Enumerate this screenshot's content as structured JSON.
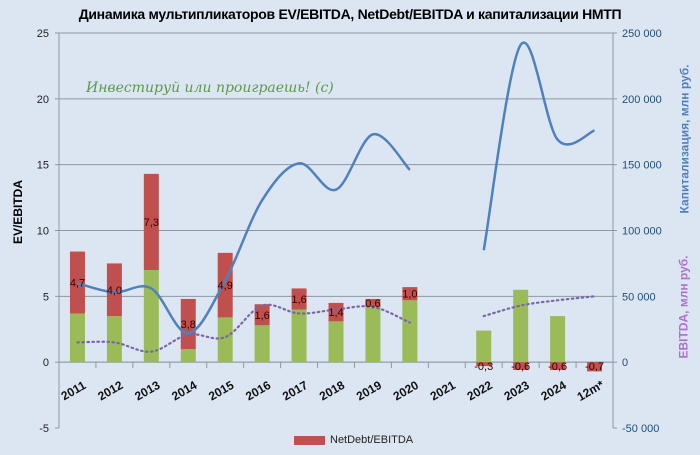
{
  "chart_data": {
    "type": "bar",
    "title": "Динамика мультипликаторов EV/EBITDA, NetDebt/EBITDA и капитализации НМТП",
    "watermark": "Инвестируй или проиграешь! (с)",
    "categories": [
      "2011",
      "2012",
      "2013",
      "2014",
      "2015",
      "2016",
      "2017",
      "2018",
      "2019",
      "2020",
      "2021",
      "2022",
      "2023",
      "2024",
      "12m*"
    ],
    "ylabel": "EV/EBITDA",
    "ylim": [
      -5,
      25
    ],
    "yticks": [
      "-5",
      "0",
      "5",
      "10",
      "15",
      "20",
      "25"
    ],
    "y2label_cap": "Капитализация, млн руб.",
    "y2label_ebitda": "EBITDA, млн руб.",
    "y2lim": [
      -50000,
      250000
    ],
    "y2ticks": [
      "-50 000",
      "0",
      "50 000",
      "100 000",
      "150 000",
      "200 000",
      "250 000"
    ],
    "grid": true,
    "legend_position": "bottom",
    "series": [
      {
        "kind": "bar-stacked",
        "color": "#9bbb59",
        "values": [
          3.7,
          3.5,
          7.0,
          1.0,
          3.4,
          2.8,
          4.0,
          3.1,
          4.2,
          4.7,
          null,
          2.4,
          5.5,
          3.5,
          0
        ]
      },
      {
        "name": "NetDebt/EBITDA",
        "kind": "bar-stacked",
        "color": "#c0504d",
        "values": [
          4.7,
          4.0,
          7.3,
          3.8,
          4.9,
          1.6,
          1.6,
          1.4,
          0.6,
          1.0,
          null,
          -0.3,
          -0.6,
          -0.6,
          -0.7
        ],
        "labels": [
          "4,7",
          "4,0",
          "7,3",
          "3,8",
          "4,9",
          "1,6",
          "1,6",
          "1,4",
          "0,6",
          "1,0",
          "",
          "-0,3",
          "-0,6",
          "-0,6",
          "-0,7"
        ]
      },
      {
        "kind": "line",
        "axis": "right",
        "color": "#4f81bd",
        "values": [
          60000,
          53000,
          56000,
          22000,
          62000,
          123000,
          151000,
          131000,
          173000,
          146000,
          null,
          85000,
          241000,
          169000,
          176000
        ]
      },
      {
        "kind": "line-dotted",
        "axis": "right",
        "color": "#7a66a8",
        "values": [
          15000,
          15000,
          8000,
          21000,
          19000,
          43000,
          37000,
          40000,
          42000,
          30000,
          null,
          35000,
          43000,
          47000,
          50000
        ]
      }
    ],
    "colors": {
      "background": "#dce6f2",
      "cap_axis_title": "#4f81bd",
      "ebitda_axis_title": "#b070d0",
      "right_tick_text": "#1f4e79"
    }
  }
}
